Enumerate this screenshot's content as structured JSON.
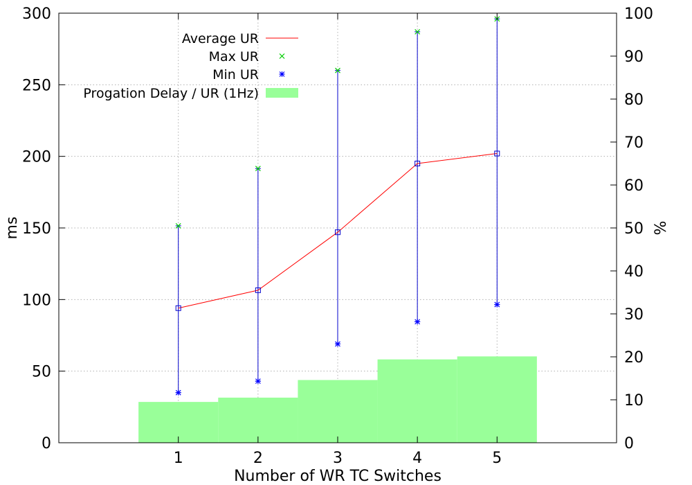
{
  "chart_data": {
    "type": "bar",
    "xlabel": "Number of WR TC Switches",
    "ylabel": "ms",
    "y2label": "%",
    "categories": [
      "1",
      "2",
      "3",
      "4",
      "5"
    ],
    "x": [
      1,
      2,
      3,
      4,
      5
    ],
    "xlim": [
      -0.5,
      6.5
    ],
    "ylim": [
      0,
      300
    ],
    "y2lim": [
      0,
      100
    ],
    "yticks": [
      0,
      50,
      100,
      150,
      200,
      250,
      300
    ],
    "y2ticks": [
      0,
      10,
      20,
      30,
      40,
      50,
      60,
      70,
      80,
      90,
      100
    ],
    "grid": true,
    "legend_position": "top-left",
    "series": [
      {
        "name": "Average UR",
        "type": "line",
        "axis": "left",
        "color": "#ff0000",
        "values": [
          94,
          106.5,
          147,
          195,
          202
        ]
      },
      {
        "name": "Max UR",
        "type": "scatter",
        "axis": "left",
        "color": "#00cc00",
        "marker": "x",
        "values": [
          151.5,
          191.5,
          260,
          287,
          296
        ]
      },
      {
        "name": "Min UR",
        "type": "scatter",
        "axis": "left",
        "color": "#0000ff",
        "marker": "star",
        "values": [
          35,
          43,
          69,
          84.5,
          96.5
        ]
      },
      {
        "name": "Progation Delay / UR (1Hz)",
        "type": "bar",
        "axis": "right",
        "color": "#99ff99",
        "values": [
          9.5,
          10.5,
          14.6,
          19.4,
          20.1
        ]
      }
    ],
    "error_bar_color": "#0000cc"
  }
}
